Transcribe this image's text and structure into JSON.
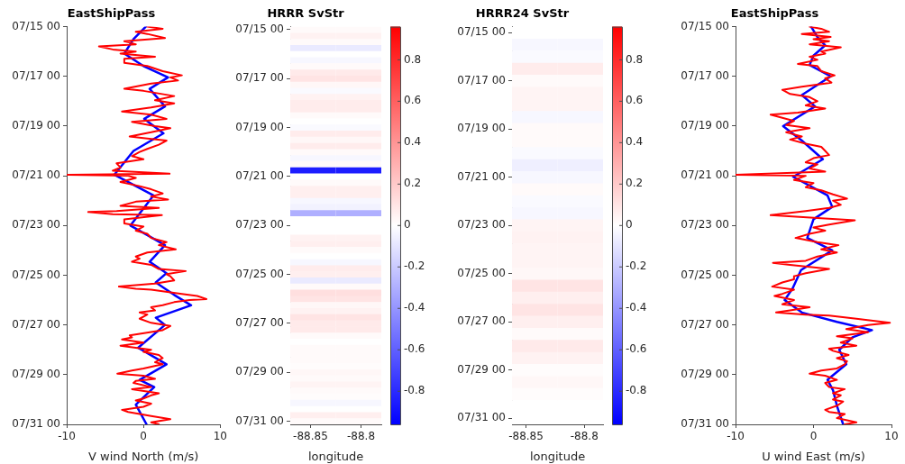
{
  "chart_data": [
    {
      "type": "line",
      "title": "EastShipPass",
      "xlabel": "V wind North (m/s)",
      "orientation": "horizontal",
      "xlim": [
        -10,
        10
      ],
      "xticks": [
        -10,
        0,
        10
      ],
      "ylim": [
        "--07-31T00:00",
        "--07-15T00:00"
      ],
      "yticks": [
        {
          "value": "--07-15T00:00",
          "label": "07/15 00"
        },
        {
          "value": "--07-17T00:00",
          "label": "07/17 00"
        },
        {
          "value": "--07-19T00:00",
          "label": "07/19 00"
        },
        {
          "value": "--07-21T00:00",
          "label": "07/21 00"
        },
        {
          "value": "--07-23T00:00",
          "label": "07/23 00"
        },
        {
          "value": "--07-25T00:00",
          "label": "07/25 00"
        },
        {
          "value": "--07-27T00:00",
          "label": "07/27 00"
        },
        {
          "value": "--07-29T00:00",
          "label": "07/29 00"
        },
        {
          "value": "--07-31T00:00",
          "label": "07/31 00"
        }
      ],
      "series": [
        {
          "color": "#ff0000",
          "x": [
            "--07-15T00:00",
            "--07-15T02:00",
            "--07-15T05:00",
            "--07-15T07:00",
            "--07-15T11:00",
            "--07-15T14:00",
            "--07-15T17:00",
            "--07-15T19:00",
            "--07-15T22:00",
            "--07-16T00:00",
            "--07-16T02:00",
            "--07-16T05:00",
            "--07-16T07:00",
            "--07-16T11:00",
            "--07-16T14:00",
            "--07-16T19:00",
            "--07-16T23:00",
            "--07-17T01:00",
            "--07-17T04:00",
            "--07-17T07:00",
            "--07-17T12:00",
            "--07-17T14:00",
            "--07-17T19:00",
            "--07-17T23:00",
            "--07-18T02:00",
            "--07-18T06:00",
            "--07-18T10:00",
            "--07-18T13:00",
            "--07-18T17:00",
            "--07-18T20:00",
            "--07-19T00:00",
            "--07-19T02:00",
            "--07-19T06:00",
            "--07-19T10:00",
            "--07-19T12:00",
            "--07-19T14:00",
            "--07-19T18:00",
            "--07-19T22:00",
            "--07-20T01:00",
            "--07-20T05:00",
            "--07-20T08:00",
            "--07-20T12:00",
            "--07-20T16:00",
            "--07-20T19:00",
            "--07-20T22:00",
            "--07-20T23:00",
            "--07-21T00:00",
            "--07-21T02:00",
            "--07-21T06:00",
            "--07-21T10:00",
            "--07-21T13:00",
            "--07-21T17:00",
            "--07-21T20:00",
            "--07-21T23:00",
            "--07-22T01:00",
            "--07-22T05:00",
            "--07-22T07:00",
            "--07-22T10:00",
            "--07-22T11:00",
            "--07-22T13:00",
            "--07-22T14:00",
            "--07-22T18:00",
            "--07-22T22:00",
            "--07-23T01:00",
            "--07-23T05:00",
            "--07-23T08:00",
            "--07-23T12:00",
            "--07-23T16:00",
            "--07-23T19:00",
            "--07-23T23:00",
            "--07-24T02:00",
            "--07-24T06:00",
            "--07-24T08:00",
            "--07-24T11:00",
            "--07-24T14:00",
            "--07-24T18:00",
            "--07-24T20:00",
            "--07-24T23:00",
            "--07-25T01:00",
            "--07-25T05:00",
            "--07-25T08:00",
            "--07-25T11:00",
            "--07-25T13:00",
            "--07-25T14:00",
            "--07-25T18:00",
            "--07-25T20:00",
            "--07-25T23:00",
            "--07-26T00:00",
            "--07-26T02:00",
            "--07-26T05:00",
            "--07-26T07:00",
            "--07-26T10:00",
            "--07-26T12:00",
            "--07-26T14:00",
            "--07-26T18:00",
            "--07-26T22:00",
            "--07-27T01:00",
            "--07-27T05:00",
            "--07-27T10:00",
            "--07-27T12:00",
            "--07-27T14:00",
            "--07-27T17:00",
            "--07-27T20:00",
            "--07-28T00:00",
            "--07-28T02:00",
            "--07-28T05:00",
            "--07-28T08:00",
            "--07-28T12:00",
            "--07-28T14:00",
            "--07-28T18:00",
            "--07-28T20:00",
            "--07-28T23:00",
            "--07-29T01:00",
            "--07-29T04:00",
            "--07-29T06:00",
            "--07-29T08:00",
            "--07-29T12:00",
            "--07-29T14:00",
            "--07-29T18:00",
            "--07-29T20:00",
            "--07-29T23:00",
            "--07-30T01:00",
            "--07-30T04:00",
            "--07-30T07:00",
            "--07-30T10:00",
            "--07-30T12:00",
            "--07-30T16:00",
            "--07-30T19:00",
            "--07-30T22:00",
            "--07-31T00:00"
          ],
          "values": [
            0.5,
            2.5,
            -1,
            0.5,
            2.8,
            -2.5,
            -1,
            -5.8,
            -4,
            -1,
            -3,
            1.5,
            -2.5,
            -2.5,
            0.5,
            2.5,
            5,
            3.5,
            4.5,
            1,
            -2.5,
            0,
            4,
            1.5,
            4,
            1,
            -2.8,
            1,
            3,
            -1.5,
            1.5,
            3.5,
            1,
            -1.8,
            0.5,
            3,
            2,
            0.5,
            -0.5,
            -1.5,
            0,
            -3.5,
            -3,
            -4,
            3.4,
            -9.9,
            -2,
            -1,
            -3,
            -0.5,
            1,
            2.5,
            1,
            3.2,
            -1,
            -3,
            2,
            -3.5,
            -7.2,
            -4,
            2.4,
            -2.5,
            -2.5,
            0,
            -1,
            0.5,
            1,
            3,
            2,
            4.2,
            0.5,
            -1,
            -0.5,
            -1.5,
            1,
            2,
            5.5,
            3,
            3.5,
            4,
            1.5,
            -3.2,
            -1,
            1,
            5,
            7,
            8.2,
            6,
            4,
            2.5,
            1,
            1.5,
            -0.5,
            0.5,
            -0.5,
            1,
            3.5,
            2.5,
            -1.8,
            -1.5,
            -2.8,
            0,
            -3,
            1,
            0,
            2,
            2.5,
            1.5,
            2.5,
            0,
            -1.5,
            -3.4,
            0,
            1.5,
            -1,
            -1.3,
            1,
            -1.5,
            2,
            1,
            0,
            -1,
            1,
            0,
            -2.8,
            -2,
            1,
            3.5,
            1,
            2
          ]
        },
        {
          "color": "#0000ff",
          "x": [
            "--07-15T00:00",
            "--07-15T12:00",
            "--07-16T02:00",
            "--07-16T14:00",
            "--07-17T01:00",
            "--07-17T12:00",
            "--07-18T05:00",
            "--07-18T17:00",
            "--07-19T07:00",
            "--07-20T00:00",
            "--07-20T23:00",
            "--07-21T19:00",
            "--07-23T00:00",
            "--07-23T19:00",
            "--07-24T11:00",
            "--07-24T22:00",
            "--07-25T07:00",
            "--07-25T19:00",
            "--07-26T05:00",
            "--07-26T17:00",
            "--07-27T00:00",
            "--07-27T22:00",
            "--07-28T14:00",
            "--07-29T05:00",
            "--07-29T12:00",
            "--07-30T05:00",
            "--07-31T00:00"
          ],
          "values": [
            0.3,
            -1.3,
            -2.5,
            0,
            3.2,
            0.8,
            2.8,
            0.1,
            2.6,
            -1.3,
            -3.8,
            1.3,
            -1.7,
            2.8,
            0.8,
            3,
            1.6,
            4,
            6.2,
            1.6,
            2.8,
            -0.7,
            3,
            -0.5,
            1.4,
            -1,
            0.4
          ]
        }
      ]
    },
    {
      "type": "heatmap",
      "title": "HRRR SvStr",
      "xlabel": "longitude",
      "x": [
        -88.8475,
        -88.8025
      ],
      "xlim": [
        -88.87,
        -88.78
      ],
      "xticks": [
        -88.85,
        -88.8
      ],
      "clim": [
        -0.96,
        0.96
      ],
      "cticks": [
        -0.8,
        -0.6,
        -0.4,
        -0.2,
        0,
        0.2,
        0.4,
        0.6,
        0.8
      ],
      "y_categories": [
        "07/15 00",
        null,
        null,
        null,
        null,
        null,
        null,
        null,
        "07/17 00",
        null,
        null,
        null,
        null,
        null,
        null,
        null,
        "07/19 00",
        null,
        null,
        null,
        null,
        null,
        null,
        null,
        "07/21 00",
        null,
        null,
        null,
        null,
        null,
        null,
        null,
        "07/23 00",
        null,
        null,
        null,
        null,
        null,
        null,
        null,
        "07/25 00",
        null,
        null,
        null,
        null,
        null,
        null,
        null,
        "07/27 00",
        null,
        null,
        null,
        null,
        null,
        null,
        null,
        "07/29 00",
        null,
        null,
        null,
        null,
        null,
        null,
        null,
        "07/31 00"
      ],
      "cells": [
        [
          0.02,
          0.02
        ],
        [
          0.05,
          0.05
        ],
        [
          0.02,
          0.02
        ],
        [
          -0.08,
          -0.08
        ],
        [
          0,
          0
        ],
        [
          -0.03,
          -0.03
        ],
        [
          0.02,
          0.02
        ],
        [
          0.08,
          0.08
        ],
        [
          0.1,
          0.1
        ],
        [
          0.03,
          0.03
        ],
        [
          -0.02,
          -0.02
        ],
        [
          0.05,
          0.05
        ],
        [
          0.07,
          0.07
        ],
        [
          0.07,
          0.07
        ],
        [
          0.02,
          0.02
        ],
        [
          0,
          0
        ],
        [
          -0.02,
          -0.02
        ],
        [
          0.07,
          0.07
        ],
        [
          0.03,
          0.03
        ],
        [
          0.07,
          0.07
        ],
        [
          0.02,
          0.02
        ],
        [
          -0.03,
          -0.03
        ],
        [
          0.02,
          0.02
        ],
        [
          -0.85,
          -0.85
        ],
        [
          0,
          0
        ],
        [
          0.02,
          0.02
        ],
        [
          0.06,
          0.06
        ],
        [
          0.06,
          0.06
        ],
        [
          -0.03,
          -0.03
        ],
        [
          -0.05,
          -0.05
        ],
        [
          -0.3,
          -0.3
        ],
        [
          0,
          0
        ],
        [
          0,
          0
        ],
        [
          0,
          0
        ],
        [
          0.05,
          0.05
        ],
        [
          0.06,
          0.06
        ],
        [
          0.02,
          0.02
        ],
        [
          0,
          0
        ],
        [
          -0.03,
          -0.03
        ],
        [
          0.07,
          0.07
        ],
        [
          0.06,
          0.06
        ],
        [
          -0.08,
          -0.08
        ],
        [
          0.02,
          0.02
        ],
        [
          0.12,
          0.12
        ],
        [
          0.1,
          0.1
        ],
        [
          0.03,
          0.03
        ],
        [
          0.05,
          0.05
        ],
        [
          0.1,
          0.1
        ],
        [
          0.08,
          0.08
        ],
        [
          0.08,
          0.08
        ],
        [
          0.02,
          0.02
        ],
        [
          0,
          0
        ],
        [
          0.02,
          0.02
        ],
        [
          0.02,
          0.02
        ],
        [
          0.02,
          0.02
        ],
        [
          0.01,
          0.01
        ],
        [
          0.03,
          0.03
        ],
        [
          0.02,
          0.02
        ],
        [
          0.04,
          0.04
        ],
        [
          0.02,
          0.02
        ],
        [
          0.01,
          0.01
        ],
        [
          -0.03,
          -0.03
        ],
        [
          0,
          0
        ],
        [
          0.06,
          0.06
        ],
        [
          0.02,
          0.02
        ]
      ]
    },
    {
      "type": "heatmap",
      "title": "HRRR24 SvStr",
      "xlabel": "longitude",
      "x": [
        -88.8425,
        -88.8035
      ],
      "xlim": [
        -88.862,
        -88.784
      ],
      "xticks": [
        -88.85,
        -88.8
      ],
      "clim": [
        -0.96,
        0.96
      ],
      "cticks": [
        -0.8,
        -0.6,
        -0.4,
        -0.2,
        0,
        0.2,
        0.4,
        0.6,
        0.8
      ],
      "y_categories": [
        "07/15 00",
        null,
        null,
        null,
        "07/17 00",
        null,
        null,
        null,
        "07/19 00",
        null,
        null,
        null,
        "07/21 00",
        null,
        null,
        null,
        "07/23 00",
        null,
        null,
        null,
        "07/25 00",
        null,
        null,
        null,
        "07/27 00",
        null,
        null,
        null,
        "07/29 00",
        null,
        null,
        null,
        "07/31 00"
      ],
      "cells": [
        [
          0,
          0
        ],
        [
          -0.03,
          -0.03
        ],
        [
          -0.02,
          -0.02
        ],
        [
          0.07,
          0.07
        ],
        [
          0.02,
          0.02
        ],
        [
          0.04,
          0.04
        ],
        [
          0.04,
          0.04
        ],
        [
          -0.03,
          -0.03
        ],
        [
          0.02,
          0.02
        ],
        [
          0.02,
          0.02
        ],
        [
          -0.02,
          -0.02
        ],
        [
          -0.06,
          -0.06
        ],
        [
          -0.03,
          -0.03
        ],
        [
          0.02,
          0.02
        ],
        [
          -0.02,
          -0.02
        ],
        [
          -0.03,
          -0.03
        ],
        [
          0.04,
          0.04
        ],
        [
          0.05,
          0.05
        ],
        [
          0.04,
          0.04
        ],
        [
          0.04,
          0.04
        ],
        [
          0.03,
          0.03
        ],
        [
          0.1,
          0.1
        ],
        [
          0.06,
          0.06
        ],
        [
          0.1,
          0.1
        ],
        [
          0.06,
          0.06
        ],
        [
          0.02,
          0.02
        ],
        [
          0.08,
          0.08
        ],
        [
          0.05,
          0.05
        ],
        [
          0.01,
          0.01
        ],
        [
          0.03,
          0.03
        ],
        [
          0.01,
          0.01
        ],
        [
          0,
          0
        ],
        [
          0,
          0
        ]
      ]
    },
    {
      "type": "line",
      "title": "EastShipPass",
      "xlabel": "U wind East (m/s)",
      "orientation": "horizontal",
      "xlim": [
        -10,
        10
      ],
      "xticks": [
        -10,
        0,
        10
      ],
      "ylim": [
        "--07-31T00:00",
        "--07-15T00:00"
      ],
      "yticks": [
        {
          "value": "--07-15T00:00",
          "label": "07/15 00"
        },
        {
          "value": "--07-17T00:00",
          "label": "07/17 00"
        },
        {
          "value": "--07-19T00:00",
          "label": "07/19 00"
        },
        {
          "value": "--07-21T00:00",
          "label": "07/21 00"
        },
        {
          "value": "--07-23T00:00",
          "label": "07/23 00"
        },
        {
          "value": "--07-25T00:00",
          "label": "07/25 00"
        },
        {
          "value": "--07-27T00:00",
          "label": "07/27 00"
        },
        {
          "value": "--07-29T00:00",
          "label": "07/29 00"
        },
        {
          "value": "--07-31T00:00",
          "label": "07/31 00"
        }
      ],
      "series": [
        {
          "color": "#ff0000",
          "x": [
            "--07-15T00:00",
            "--07-15T02:00",
            "--07-15T05:00",
            "--07-15T07:00",
            "--07-15T10:00",
            "--07-15T12:00",
            "--07-15T14:00",
            "--07-15T17:00",
            "--07-15T20:00",
            "--07-16T00:00",
            "--07-16T02:00",
            "--07-16T05:00",
            "--07-16T08:00",
            "--07-16T12:00",
            "--07-16T14:00",
            "--07-16T19:00",
            "--07-16T23:00",
            "--07-17T02:00",
            "--07-17T06:00",
            "--07-17T10:00",
            "--07-17T13:00",
            "--07-17T17:00",
            "--07-17T20:00",
            "--07-18T00:00",
            "--07-18T04:00",
            "--07-18T07:00",
            "--07-18T11:00",
            "--07-18T13:00",
            "--07-18T16:00",
            "--07-18T19:00",
            "--07-18T23:00",
            "--07-19T02:00",
            "--07-19T06:00",
            "--07-19T10:00",
            "--07-19T13:00",
            "--07-19T17:00",
            "--07-19T20:00",
            "--07-20T00:00",
            "--07-20T04:00",
            "--07-20T07:00",
            "--07-20T11:00",
            "--07-20T13:00",
            "--07-20T17:00",
            "--07-20T20:00",
            "--07-20T23:00",
            "--07-21T00:00",
            "--07-21T04:00",
            "--07-21T07:00",
            "--07-21T11:00",
            "--07-21T14:00",
            "--07-21T18:00",
            "--07-21T22:00",
            "--07-22T00:00",
            "--07-22T04:00",
            "--07-22T07:00",
            "--07-22T10:00",
            "--07-22T14:00",
            "--07-22T17:00",
            "--07-22T19:00",
            "--07-22T23:00",
            "--07-23T02:00",
            "--07-23T05:00",
            "--07-23T08:00",
            "--07-23T12:00",
            "--07-23T16:00",
            "--07-23T19:00",
            "--07-23T23:00",
            "--07-24T02:00",
            "--07-24T06:00",
            "--07-24T10:00",
            "--07-24T12:00",
            "--07-24T14:00",
            "--07-24T18:00",
            "--07-24T22:00",
            "--07-25T01:00",
            "--07-25T04:00",
            "--07-25T07:00",
            "--07-25T11:00",
            "--07-25T14:00",
            "--07-25T18:00",
            "--07-25T20:00",
            "--07-26T00:00",
            "--07-26T04:00",
            "--07-26T07:00",
            "--07-26T10:00",
            "--07-26T12:00",
            "--07-26T14:00",
            "--07-26T15:00",
            "--07-26T18:00",
            "--07-26T22:00",
            "--07-27T00:00",
            "--07-27T04:00",
            "--07-27T07:00",
            "--07-27T11:00",
            "--07-27T13:00",
            "--07-27T17:00",
            "--07-27T20:00",
            "--07-27T23:00",
            "--07-28T01:00",
            "--07-28T05:00",
            "--07-28T08:00",
            "--07-28T11:00",
            "--07-28T14:00",
            "--07-28T18:00",
            "--07-28T20:00",
            "--07-28T23:00",
            "--07-29T01:00",
            "--07-29T05:00",
            "--07-29T08:00",
            "--07-29T12:00",
            "--07-29T14:00",
            "--07-29T18:00",
            "--07-29T20:00",
            "--07-30T00:00",
            "--07-30T02:00",
            "--07-30T06:00",
            "--07-30T10:00",
            "--07-30T12:00",
            "--07-30T14:00",
            "--07-30T18:00",
            "--07-30T22:00",
            "--07-31T00:00"
          ],
          "values": [
            -0.5,
            1,
            2,
            -1.5,
            2.2,
            0,
            2,
            -0.5,
            3.5,
            1,
            1.5,
            -0.5,
            0.5,
            -2,
            0.5,
            1,
            2.7,
            1.5,
            2.3,
            -1.5,
            -4,
            -3,
            -0.5,
            0.5,
            -1,
            1.5,
            -2,
            -5.5,
            -4,
            -2.5,
            -3.5,
            -0.5,
            -3.5,
            -1.5,
            -3,
            -1,
            1,
            1.5,
            2,
            0,
            -1,
            0.5,
            -0.5,
            1.5,
            -10,
            -1,
            -2.5,
            0,
            -1,
            1,
            2.5,
            4.3,
            2.5,
            3.5,
            2,
            -1,
            -5.5,
            1,
            5.3,
            2,
            0,
            1.5,
            -0.5,
            -2.3,
            0.5,
            3.2,
            1,
            3,
            0.5,
            -1,
            -5.2,
            -3,
            2,
            -1,
            -2.5,
            -2.5,
            -4,
            -5.3,
            -2.5,
            -4,
            -5,
            -2.5,
            -4,
            -0.5,
            -3,
            -4.8,
            -1,
            2,
            5.5,
            9.8,
            7,
            4.2,
            7,
            3,
            5,
            3.5,
            5.5,
            2,
            2.5,
            4.5,
            3,
            4.3,
            4,
            3,
            1,
            -0.5,
            1.5,
            3,
            1.5,
            2,
            4,
            2.5,
            3.5,
            2.5,
            3.8,
            3,
            1.5,
            2,
            4,
            3,
            5.5,
            4
          ]
        },
        {
          "color": "#0000ff",
          "x": [
            "--07-15T00:00",
            "--07-15T10:00",
            "--07-15T18:00",
            "--07-16T04:00",
            "--07-16T13:00",
            "--07-17T00:00",
            "--07-17T18:00",
            "--07-18T05:00",
            "--07-19T00:00",
            "--07-19T14:00",
            "--07-20T08:00",
            "--07-21T01:00",
            "--07-21T19:00",
            "--07-22T06:00",
            "--07-22T18:00",
            "--07-23T12:00",
            "--07-24T00:00",
            "--07-24T19:00",
            "--07-25T13:00",
            "--07-26T00:00",
            "--07-26T12:00",
            "--07-26T21:00",
            "--07-27T05:00",
            "--07-27T12:00",
            "--07-28T00:00",
            "--07-28T14:00",
            "--07-29T05:00",
            "--07-29T15:00",
            "--07-30T06:00",
            "--07-31T00:00"
          ],
          "values": [
            -0.3,
            0.5,
            1.5,
            0,
            -0.5,
            2.2,
            -1.5,
            0.2,
            -3.9,
            -1.5,
            1.2,
            -2.6,
            1.8,
            2.4,
            0,
            -0.8,
            2.4,
            -1.6,
            -2.7,
            -3.7,
            -1.5,
            3,
            7.5,
            5,
            3.3,
            4.2,
            1.8,
            2.5,
            3,
            3.8
          ]
        }
      ]
    }
  ]
}
